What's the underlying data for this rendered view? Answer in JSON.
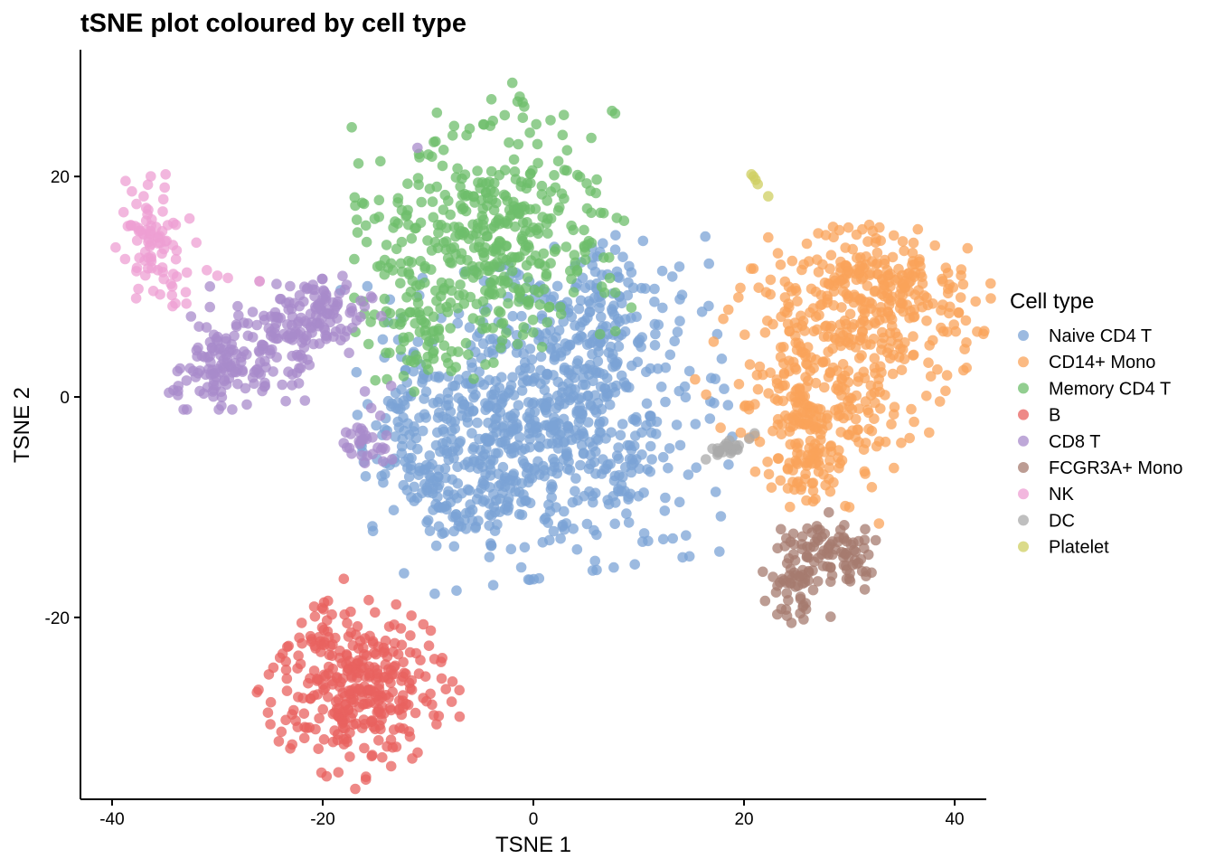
{
  "chart_data": {
    "type": "scatter",
    "title": "tSNE plot coloured by cell type",
    "xlabel": "TSNE 1",
    "ylabel": "TSNE 2",
    "xlim": [
      -43,
      43
    ],
    "ylim": [
      -36.5,
      31.5
    ],
    "xticks": [
      -40,
      -20,
      0,
      20,
      40
    ],
    "yticks": [
      -20,
      0,
      20
    ],
    "xtick_labels": [
      "-40",
      "-20",
      "0",
      "20",
      "40"
    ],
    "ytick_labels": [
      "-20",
      "0",
      "20"
    ],
    "grid": false,
    "legend": {
      "title": "Cell type",
      "position": "right"
    },
    "series": [
      {
        "name": "Naive CD4 T",
        "color": "#7BA3D6",
        "clusters": [
          {
            "cx": 1,
            "cy": -2,
            "sx": 7.6,
            "sy": 6.2,
            "rot": 8,
            "n": 760
          },
          {
            "cx": -7,
            "cy": -9,
            "sx": 3.5,
            "sy": 2.2,
            "rot": 0,
            "n": 90
          },
          {
            "cx": 7,
            "cy": 8,
            "sx": 3,
            "sy": 3,
            "rot": 0,
            "n": 80
          },
          {
            "cx": -12,
            "cy": -3,
            "sx": 2,
            "sy": 2.5,
            "rot": 0,
            "n": 40
          }
        ],
        "points": [
          [
            -4,
            -13.5
          ],
          [
            6,
            -12.5
          ],
          [
            11.5,
            9.8
          ],
          [
            8.5,
            12.7
          ],
          [
            -14,
            -6
          ]
        ]
      },
      {
        "name": "CD14+ Mono",
        "color": "#F9A35A",
        "clusters": [
          {
            "cx": 34,
            "cy": 10,
            "sx": 4.2,
            "sy": 2.5,
            "rot": -20,
            "n": 180
          },
          {
            "cx": 29,
            "cy": 4,
            "sx": 4.8,
            "sy": 5,
            "rot": -30,
            "n": 300
          },
          {
            "cx": 26.5,
            "cy": -3,
            "sx": 2.8,
            "sy": 3,
            "rot": 0,
            "n": 110
          },
          {
            "cx": 26,
            "cy": -7.5,
            "sx": 1.8,
            "sy": 1.4,
            "rot": 0,
            "n": 30
          }
        ],
        "points": [
          [
            22.5,
            9.3
          ],
          [
            30,
            -10
          ],
          [
            28.5,
            14.5
          ],
          [
            39.5,
            10.2
          ],
          [
            23.5,
            4.5
          ]
        ]
      },
      {
        "name": "Memory CD4 T",
        "color": "#6DBE6B",
        "clusters": [
          {
            "cx": -4,
            "cy": 15,
            "sx": 5.5,
            "sy": 5.2,
            "rot": 5,
            "n": 420
          },
          {
            "cx": -10,
            "cy": 6,
            "sx": 3,
            "sy": 3.5,
            "rot": 0,
            "n": 70
          }
        ],
        "points": [
          [
            -2,
            28.5
          ],
          [
            -1.5,
            26.8
          ],
          [
            5.5,
            23.5
          ],
          [
            -14,
            4
          ],
          [
            -15,
            1.5
          ],
          [
            -17,
            9
          ],
          [
            -17,
            12.5
          ],
          [
            6.5,
            10
          ],
          [
            0.5,
            9.5
          ]
        ]
      },
      {
        "name": "B",
        "color": "#E8625F",
        "clusters": [
          {
            "cx": -16.5,
            "cy": -26.5,
            "sx": 3.4,
            "sy": 3.6,
            "rot": -35,
            "n": 330
          }
        ],
        "points": [
          [
            -18,
            -16.5
          ],
          [
            -19.5,
            -18.5
          ],
          [
            -22,
            -20.5
          ],
          [
            -23.5,
            -24
          ],
          [
            -7,
            -29
          ],
          [
            -13.5,
            -33.5
          ],
          [
            -11.5,
            -32.8
          ],
          [
            -12.5,
            -22.5
          ]
        ]
      },
      {
        "name": "CD8 T",
        "color": "#A88BCB",
        "clusters": [
          {
            "cx": -30,
            "cy": 3,
            "sx": 2,
            "sy": 1.8,
            "rot": 0,
            "n": 90
          },
          {
            "cx": -24.5,
            "cy": 4.5,
            "sx": 2.7,
            "sy": 2.5,
            "rot": 0,
            "n": 100
          },
          {
            "cx": -19.5,
            "cy": 7.5,
            "sx": 2.2,
            "sy": 1.6,
            "rot": 0,
            "n": 90
          },
          {
            "cx": -16,
            "cy": -4,
            "sx": 1.2,
            "sy": 1.4,
            "rot": 0,
            "n": 30
          }
        ],
        "points": [
          [
            -26,
            10.5
          ],
          [
            -32.5,
            7.3
          ],
          [
            -11,
            22.6
          ],
          [
            -17.5,
            4
          ],
          [
            -16,
            0.5
          ],
          [
            -13.5,
            1
          ],
          [
            -16,
            -6
          ]
        ]
      },
      {
        "name": "FCGR3A+ Mono",
        "color": "#A67B6F",
        "clusters": [
          {
            "cx": 25,
            "cy": -16.5,
            "sx": 1.4,
            "sy": 1.6,
            "rot": 0,
            "n": 60
          },
          {
            "cx": 29,
            "cy": -14,
            "sx": 2,
            "sy": 1.3,
            "rot": -20,
            "n": 70
          }
        ],
        "points": [
          [
            24.5,
            -20.5
          ],
          [
            22,
            -18.5
          ],
          [
            31.5,
            -12
          ],
          [
            32.5,
            -13
          ],
          [
            30,
            -16.5
          ],
          [
            23.5,
            -12
          ]
        ]
      },
      {
        "name": "NK",
        "color": "#EE9FD3",
        "clusters": [
          {
            "cx": -36,
            "cy": 14,
            "sx": 1.6,
            "sy": 2.6,
            "rot": 10,
            "n": 80
          }
        ],
        "points": [
          [
            -38.5,
            15.5
          ],
          [
            -37,
            18.2
          ],
          [
            -35,
            19
          ],
          [
            -32,
            14
          ],
          [
            -31,
            11.5
          ],
          [
            -30,
            11
          ],
          [
            -29,
            10.8
          ],
          [
            -26,
            10.5
          ],
          [
            -37.5,
            9.8
          ],
          [
            -33,
            9.5
          ]
        ]
      },
      {
        "name": "DC",
        "color": "#A9A9A9",
        "clusters": [
          {
            "cx": 18.5,
            "cy": -4.7,
            "sx": 1.0,
            "sy": 0.3,
            "rot": 15,
            "n": 20
          }
        ],
        "points": [
          [
            17,
            -4.7
          ],
          [
            20.5,
            -3.8
          ],
          [
            21,
            -3.3
          ],
          [
            19.5,
            -4.4
          ],
          [
            18,
            -5
          ]
        ]
      },
      {
        "name": "Platelet",
        "color": "#CFCF62",
        "clusters": [],
        "points": [
          [
            20.7,
            20.2
          ],
          [
            21.1,
            19.7
          ],
          [
            21.3,
            19.3
          ],
          [
            20.9,
            20.0
          ],
          [
            22.3,
            18.2
          ]
        ]
      }
    ]
  }
}
